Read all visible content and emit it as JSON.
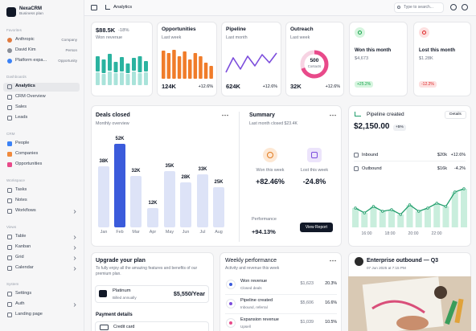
{
  "sidebar": {
    "brand": "NexaCRM",
    "plan": "Business plan",
    "sections": [
      {
        "title": "Favorites",
        "items": [
          {
            "label": "Anthropic",
            "tag": "Company",
            "color": "#e07a3f"
          },
          {
            "label": "David Kim",
            "tag": "Person",
            "color": "#8a8f98"
          },
          {
            "label": "Platform expa...",
            "tag": "Opportunity",
            "color": "#3b82f6"
          }
        ]
      },
      {
        "title": "Dashboards",
        "items": [
          {
            "label": "Analytics",
            "active": true
          },
          {
            "label": "CRM Overview"
          },
          {
            "label": "Sales"
          },
          {
            "label": "Leads"
          }
        ]
      },
      {
        "title": "CRM",
        "items": [
          {
            "label": "People",
            "color": "#3b82f6"
          },
          {
            "label": "Companies",
            "color": "#f08a3c"
          },
          {
            "label": "Opportunities",
            "color": "#e84a8a"
          }
        ]
      },
      {
        "title": "Workspace",
        "items": [
          {
            "label": "Tasks"
          },
          {
            "label": "Notes"
          },
          {
            "label": "Workflows",
            "chevron": true
          }
        ]
      },
      {
        "title": "Views",
        "items": [
          {
            "label": "Table",
            "chevron": true
          },
          {
            "label": "Kanban",
            "chevron": true
          },
          {
            "label": "Grid",
            "chevron": true
          },
          {
            "label": "Calendar",
            "chevron": true
          }
        ]
      },
      {
        "title": "System",
        "items": [
          {
            "label": "Settings"
          },
          {
            "label": "Auth",
            "chevron": true
          },
          {
            "label": "Landing page"
          }
        ]
      }
    ]
  },
  "topbar": {
    "page": "Analytics",
    "search": "Type to search..."
  },
  "kpis": [
    {
      "value": "$88.5K",
      "change": "-18%",
      "label": "Won revenue",
      "chart": {
        "type": "stacked-bar",
        "colors": [
          "#a9e3da",
          "#2bb3a0"
        ],
        "series": [
          [
            17,
            15,
            18,
            16,
            17,
            15,
            18,
            16,
            17
          ],
          [
            20,
            18,
            22,
            14,
            19,
            13,
            17,
            21,
            14
          ]
        ]
      }
    },
    {
      "title": "Opportunities",
      "label": "Last week",
      "value": "124K",
      "change": "+12.6%",
      "chart": {
        "type": "bar",
        "color": "#f07c2a",
        "values": [
          35,
          32,
          36,
          28,
          34,
          24,
          32,
          28,
          20,
          16
        ]
      }
    },
    {
      "title": "Pipeline",
      "label": "Last month",
      "value": "624K",
      "change": "+12.6%",
      "chart": {
        "type": "line",
        "color": "#7c4ddc",
        "values": [
          10,
          28,
          14,
          30,
          18,
          32,
          22,
          34
        ]
      }
    },
    {
      "title": "Outreach",
      "label": "Last week",
      "value": "32K",
      "change": "+12.6%",
      "chart": {
        "type": "donut",
        "color": "#e84a8a",
        "track": "#f7d3e3",
        "value": 70,
        "center": "500",
        "center_label": "Contacts"
      }
    },
    {
      "title": "Won this month",
      "value": "$4,673",
      "change": "+25.2%",
      "color": "#16a34a",
      "bg": "#d6f5df"
    },
    {
      "title": "Lost this month",
      "value": "$1.28K",
      "change": "-12.2%",
      "color": "#dc2626",
      "bg": "#fde0e0"
    }
  ],
  "deals": {
    "title": "Deals closed",
    "subtitle": "Monthly overview",
    "categories": [
      "Jan",
      "Feb",
      "Mar",
      "Apr",
      "May",
      "Jun",
      "Jul",
      "Aug"
    ],
    "values": [
      38,
      52,
      32,
      12,
      35,
      28,
      33,
      25
    ],
    "value_labels": [
      "38K",
      "52K",
      "32K",
      "12K",
      "35K",
      "28K",
      "33K",
      "25K"
    ],
    "color": "#dde3f7",
    "highlight_color": "#3b5bdb",
    "highlight": 1
  },
  "summary": {
    "title": "Summary",
    "subtitle": "Last month closed $23.4K",
    "won_label": "Won this week",
    "won": "+82.46%",
    "lost_label": "Lost this week",
    "lost": "-24.8%",
    "perf_label": "Performance",
    "perf": "+94.13%",
    "button": "View Report"
  },
  "pipeline": {
    "title": "Pipeline created",
    "button": "Details",
    "value": "$2,150.00",
    "change": "+5%",
    "rows": [
      {
        "label": "Inbound",
        "amount": "$20k",
        "change": "+12.6%"
      },
      {
        "label": "Outbound",
        "amount": "$16k",
        "change": "-4.2%"
      }
    ],
    "x_labels": [
      "16:00",
      "18:00",
      "20:00",
      "22:00"
    ],
    "values": [
      12,
      9,
      13,
      10,
      11,
      8,
      14,
      10,
      12,
      15,
      13,
      22,
      24
    ],
    "color": "#1f9d6b",
    "bar_color": "#c9eedd"
  },
  "upgrade": {
    "title": "Upgrade your plan",
    "text": "To fully enjoy all the amazing features and benefits of our premium plan.",
    "plan": "Platinum",
    "billing": "Billed annually",
    "price": "$5,550/Year",
    "payment": "Payment details",
    "method": "Credit card"
  },
  "weekly": {
    "title": "Weekly performance",
    "subtitle": "Activity and revenue this week",
    "rows": [
      {
        "name": "Won revenue",
        "sub": "Closed deals",
        "amount": "$1,623",
        "change": "20.3%",
        "color": "#3b5bdb"
      },
      {
        "name": "Pipeline created",
        "sub": "Inbound, referral",
        "amount": "$5,606",
        "change": "16.6%",
        "color": "#7c4ddc"
      },
      {
        "name": "Expansion revenue",
        "sub": "Upsell",
        "amount": "$1,039",
        "change": "10.5%",
        "color": "#e84a8a"
      }
    ]
  },
  "post": {
    "title": "Enterprise outbound — Q3",
    "date": "07 Jun 2025 at 7:15 PM"
  }
}
